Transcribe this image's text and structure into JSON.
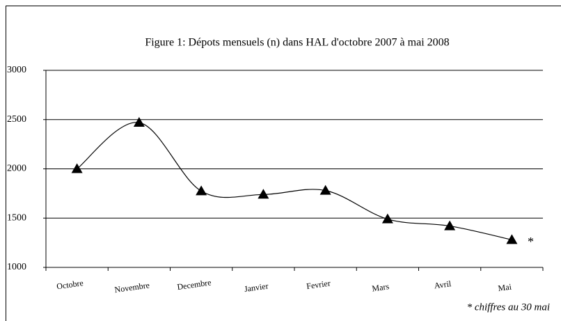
{
  "chart_data": {
    "type": "line",
    "title": "Figure 1: Dépots mensuels (n) dans HAL d'octobre 2007 à mai 2008",
    "categories": [
      "Octobre",
      "Novembre",
      "Decembre",
      "Janvier",
      "Fevrier",
      "Mars",
      "Avril",
      "Mai"
    ],
    "series": [
      {
        "name": "Dépots mensuels",
        "color": "#000000",
        "values": [
          2000,
          2470,
          1775,
          1740,
          1780,
          1490,
          1420,
          1280
        ]
      }
    ],
    "ylim": [
      1000,
      3000
    ],
    "yticks": [
      1000,
      1500,
      2000,
      2500,
      3000
    ],
    "grid": true,
    "annotations": [
      "*",
      "* chiffres au 30 mai"
    ]
  }
}
